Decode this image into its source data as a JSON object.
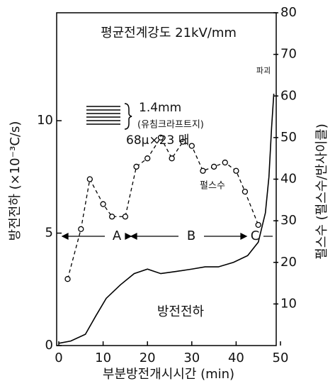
{
  "chart_data": {
    "type": "line",
    "title": "평균전계강도 21kV/mm",
    "xlabel": "부분방전개시시간 (min)",
    "ylabel": "방전전하 (×10⁻³C/s)",
    "y2label": "펄스수 (펄스수/반사이클)",
    "xlim": [
      0,
      50
    ],
    "xticks": [
      0,
      10,
      20,
      30,
      40,
      50
    ],
    "ylim": [
      0,
      14.8
    ],
    "yticks": [
      0,
      5,
      10
    ],
    "y2lim": [
      0,
      80
    ],
    "y2ticks": [
      10,
      20,
      30,
      40,
      50,
      60,
      70,
      80
    ],
    "series": [
      {
        "name": "방전전하",
        "color": "#000000",
        "style": "solid",
        "markers": false,
        "x": [
          0,
          2.7,
          6,
          8.3,
          10.7,
          13.9,
          17,
          20,
          23,
          26.6,
          30,
          33,
          36,
          39.4,
          42.6,
          45,
          46.6,
          47.4,
          48,
          48.5
        ],
        "values": [
          0.1,
          0.2,
          0.5,
          1.3,
          2.1,
          2.7,
          3.2,
          3.4,
          3.2,
          3.3,
          3.4,
          3.5,
          3.5,
          3.7,
          4.0,
          4.6,
          5.9,
          7.5,
          9.7,
          11.2
        ]
      },
      {
        "name": "펄스수",
        "color": "#000000",
        "style": "dashed",
        "markers": true,
        "axis": "y2",
        "x": [
          2,
          5,
          7,
          10,
          12,
          15,
          17.5,
          20,
          23,
          25.5,
          28,
          30,
          32.5,
          35,
          37.5,
          40,
          42,
          45
        ],
        "values": [
          16,
          28,
          40,
          34,
          31,
          31,
          43,
          45,
          50,
          45,
          49,
          48,
          42,
          43,
          44,
          42,
          37,
          29
        ]
      }
    ],
    "annotations": [
      "1.4mm",
      "(유침크라프트지)",
      "68μ×23 매",
      "파괴",
      "A",
      "B",
      "C"
    ]
  }
}
